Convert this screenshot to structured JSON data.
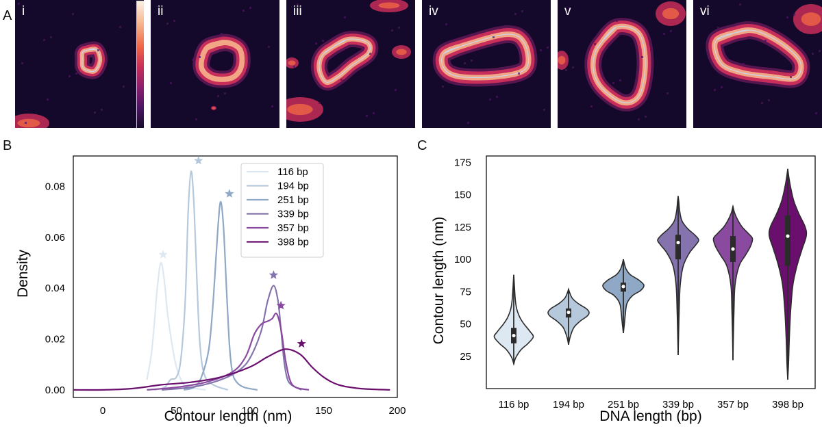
{
  "panels": {
    "A": {
      "letter": "A",
      "images": [
        {
          "label": "i"
        },
        {
          "label": "ii"
        },
        {
          "label": "iii"
        },
        {
          "label": "iv"
        },
        {
          "label": "v"
        },
        {
          "label": "vi"
        }
      ],
      "colormap": [
        "#190c2e",
        "#4b1661",
        "#8b1f6e",
        "#c72e5a",
        "#f06545",
        "#f6b48b",
        "#fdf0e3"
      ]
    },
    "B": {
      "letter": "B"
    },
    "C": {
      "letter": "C"
    }
  },
  "chart_data": [
    {
      "type": "line",
      "title": "",
      "xlabel": "Contour length (nm)",
      "ylabel": "Density",
      "xlim": [
        -20,
        200
      ],
      "ylim": [
        -0.003,
        0.092
      ],
      "xticks": [
        0,
        50,
        100,
        150,
        200
      ],
      "yticks": [
        0.0,
        0.02,
        0.04,
        0.06,
        0.08
      ],
      "ytick_labels": [
        "0.00",
        "0.02",
        "0.04",
        "0.06",
        "0.08"
      ],
      "legend": "top-right",
      "series": [
        {
          "name": "116 bp",
          "color": "#dde8f2",
          "peak_x": 39.5,
          "peak_y": 0.05,
          "star": [
            41,
            0.051
          ],
          "points": [
            [
              30,
              0.004
            ],
            [
              33,
              0.014
            ],
            [
              35,
              0.026
            ],
            [
              37,
              0.04
            ],
            [
              39.5,
              0.05
            ],
            [
              42,
              0.042
            ],
            [
              44,
              0.03
            ],
            [
              47,
              0.018
            ],
            [
              50,
              0.009
            ],
            [
              54,
              0.003
            ],
            [
              58,
              0.001
            ],
            [
              70,
              0.0
            ]
          ]
        },
        {
          "name": "194 bp",
          "color": "#b6c9dc",
          "peak_x": 60,
          "peak_y": 0.086,
          "star": [
            65,
            0.088
          ],
          "points": [
            [
              35,
              0.0
            ],
            [
              42,
              0.001
            ],
            [
              46,
              0.004
            ],
            [
              50,
              0.005
            ],
            [
              53,
              0.012
            ],
            [
              56,
              0.035
            ],
            [
              58,
              0.07
            ],
            [
              60,
              0.086
            ],
            [
              62,
              0.072
            ],
            [
              64,
              0.042
            ],
            [
              66,
              0.018
            ],
            [
              69,
              0.006
            ],
            [
              75,
              0.002
            ],
            [
              85,
              0.0
            ]
          ]
        },
        {
          "name": "251 bp",
          "color": "#8ea8c6",
          "peak_x": 80,
          "peak_y": 0.074,
          "star": [
            86,
            0.075
          ],
          "points": [
            [
              55,
              0.0
            ],
            [
              62,
              0.001
            ],
            [
              67,
              0.005
            ],
            [
              72,
              0.016
            ],
            [
              75,
              0.035
            ],
            [
              78,
              0.062
            ],
            [
              80,
              0.074
            ],
            [
              82,
              0.064
            ],
            [
              84,
              0.04
            ],
            [
              86,
              0.018
            ],
            [
              88,
              0.007
            ],
            [
              91,
              0.003
            ],
            [
              96,
              0.001
            ],
            [
              105,
              0.0
            ]
          ]
        },
        {
          "name": "339 bp",
          "color": "#8473ac",
          "peak_x": 116,
          "peak_y": 0.041,
          "star": [
            116,
            0.043
          ],
          "points": [
            [
              40,
              0.0
            ],
            [
              60,
              0.001
            ],
            [
              75,
              0.003
            ],
            [
              88,
              0.006
            ],
            [
              97,
              0.01
            ],
            [
              103,
              0.016
            ],
            [
              108,
              0.024
            ],
            [
              112,
              0.035
            ],
            [
              116,
              0.041
            ],
            [
              119,
              0.035
            ],
            [
              121,
              0.024
            ],
            [
              123,
              0.012
            ],
            [
              125,
              0.005
            ],
            [
              128,
              0.002
            ],
            [
              135,
              0.0
            ]
          ]
        },
        {
          "name": "357 bp",
          "color": "#8a4a9f",
          "peak_x": 118,
          "peak_y": 0.03,
          "star": [
            121,
            0.031
          ],
          "points": [
            [
              30,
              0.0
            ],
            [
              50,
              0.001
            ],
            [
              70,
              0.003
            ],
            [
              88,
              0.007
            ],
            [
              97,
              0.013
            ],
            [
              103,
              0.022
            ],
            [
              108,
              0.026
            ],
            [
              112,
              0.027
            ],
            [
              115,
              0.028
            ],
            [
              118,
              0.03
            ],
            [
              121,
              0.024
            ],
            [
              124,
              0.012
            ],
            [
              127,
              0.004
            ],
            [
              131,
              0.001
            ],
            [
              140,
              0.0
            ]
          ]
        },
        {
          "name": "398 bp",
          "color": "#6a0f6e",
          "peak_x": 124,
          "peak_y": 0.016,
          "star": [
            135,
            0.016
          ],
          "points": [
            [
              -20,
              0.0
            ],
            [
              0,
              0.0
            ],
            [
              20,
              0.0005
            ],
            [
              40,
              0.002
            ],
            [
              60,
              0.003
            ],
            [
              80,
              0.005
            ],
            [
              100,
              0.009
            ],
            [
              112,
              0.013
            ],
            [
              124,
              0.016
            ],
            [
              134,
              0.014
            ],
            [
              142,
              0.009
            ],
            [
              150,
              0.005
            ],
            [
              160,
              0.002
            ],
            [
              175,
              0.0005
            ],
            [
              195,
              0.0
            ]
          ]
        }
      ]
    },
    {
      "type": "violin",
      "title": "",
      "xlabel": "DNA length (bp)",
      "ylabel": "Contour length (nm)",
      "ylim": [
        0,
        180
      ],
      "yticks": [
        25,
        50,
        75,
        100,
        125,
        150,
        175
      ],
      "categories": [
        "116 bp",
        "194 bp",
        "251 bp",
        "339 bp",
        "357 bp",
        "398 bp"
      ],
      "series": [
        {
          "name": "116 bp",
          "color": "#dde8f2",
          "min": 19,
          "q1": 35,
          "median": 41,
          "q3": 47,
          "max": 88,
          "profile": [
            [
              19,
              0
            ],
            [
              24,
              0.1
            ],
            [
              30,
              0.35
            ],
            [
              35,
              0.7
            ],
            [
              40,
              0.95
            ],
            [
              44,
              0.8
            ],
            [
              50,
              0.5
            ],
            [
              55,
              0.3
            ],
            [
              62,
              0.14
            ],
            [
              70,
              0.07
            ],
            [
              80,
              0.03
            ],
            [
              88,
              0
            ]
          ]
        },
        {
          "name": "194 bp",
          "color": "#b6c9dc",
          "min": 34,
          "q1": 55,
          "median": 59,
          "q3": 62,
          "max": 77,
          "profile": [
            [
              34,
              0
            ],
            [
              40,
              0.08
            ],
            [
              47,
              0.25
            ],
            [
              52,
              0.55
            ],
            [
              56,
              0.9
            ],
            [
              59,
              1.0
            ],
            [
              62,
              0.85
            ],
            [
              66,
              0.45
            ],
            [
              70,
              0.18
            ],
            [
              74,
              0.06
            ],
            [
              77,
              0
            ]
          ]
        },
        {
          "name": "251 bp",
          "color": "#8ea8c6",
          "min": 43,
          "q1": 75,
          "median": 79,
          "q3": 82,
          "max": 100,
          "profile": [
            [
              43,
              0
            ],
            [
              50,
              0.05
            ],
            [
              58,
              0.1
            ],
            [
              66,
              0.18
            ],
            [
              72,
              0.45
            ],
            [
              76,
              0.85
            ],
            [
              80,
              1.0
            ],
            [
              84,
              0.75
            ],
            [
              88,
              0.35
            ],
            [
              92,
              0.15
            ],
            [
              96,
              0.06
            ],
            [
              100,
              0
            ]
          ]
        },
        {
          "name": "339 bp",
          "color": "#8473ac",
          "min": 26,
          "q1": 100,
          "median": 113,
          "q3": 119,
          "max": 149,
          "profile": [
            [
              26,
              0
            ],
            [
              40,
              0.02
            ],
            [
              60,
              0.05
            ],
            [
              80,
              0.1
            ],
            [
              95,
              0.25
            ],
            [
              105,
              0.55
            ],
            [
              111,
              0.85
            ],
            [
              115,
              1.0
            ],
            [
              119,
              0.8
            ],
            [
              124,
              0.45
            ],
            [
              130,
              0.18
            ],
            [
              138,
              0.07
            ],
            [
              145,
              0.03
            ],
            [
              149,
              0
            ]
          ]
        },
        {
          "name": "357 bp",
          "color": "#8a4a9f",
          "min": 22,
          "q1": 98,
          "median": 108,
          "q3": 118,
          "max": 141,
          "profile": [
            [
              22,
              0
            ],
            [
              40,
              0.02
            ],
            [
              60,
              0.05
            ],
            [
              80,
              0.1
            ],
            [
              95,
              0.3
            ],
            [
              103,
              0.6
            ],
            [
              110,
              0.85
            ],
            [
              116,
              0.95
            ],
            [
              120,
              0.75
            ],
            [
              125,
              0.45
            ],
            [
              130,
              0.25
            ],
            [
              136,
              0.08
            ],
            [
              141,
              0
            ]
          ]
        },
        {
          "name": "398 bp",
          "color": "#6a0f6e",
          "min": 7,
          "q1": 95,
          "median": 118,
          "q3": 134,
          "max": 170,
          "profile": [
            [
              7,
              0
            ],
            [
              20,
              0.04
            ],
            [
              40,
              0.08
            ],
            [
              60,
              0.14
            ],
            [
              80,
              0.25
            ],
            [
              95,
              0.45
            ],
            [
              108,
              0.7
            ],
            [
              118,
              0.9
            ],
            [
              125,
              0.85
            ],
            [
              135,
              0.55
            ],
            [
              145,
              0.3
            ],
            [
              155,
              0.15
            ],
            [
              163,
              0.06
            ],
            [
              170,
              0
            ]
          ]
        }
      ]
    }
  ]
}
